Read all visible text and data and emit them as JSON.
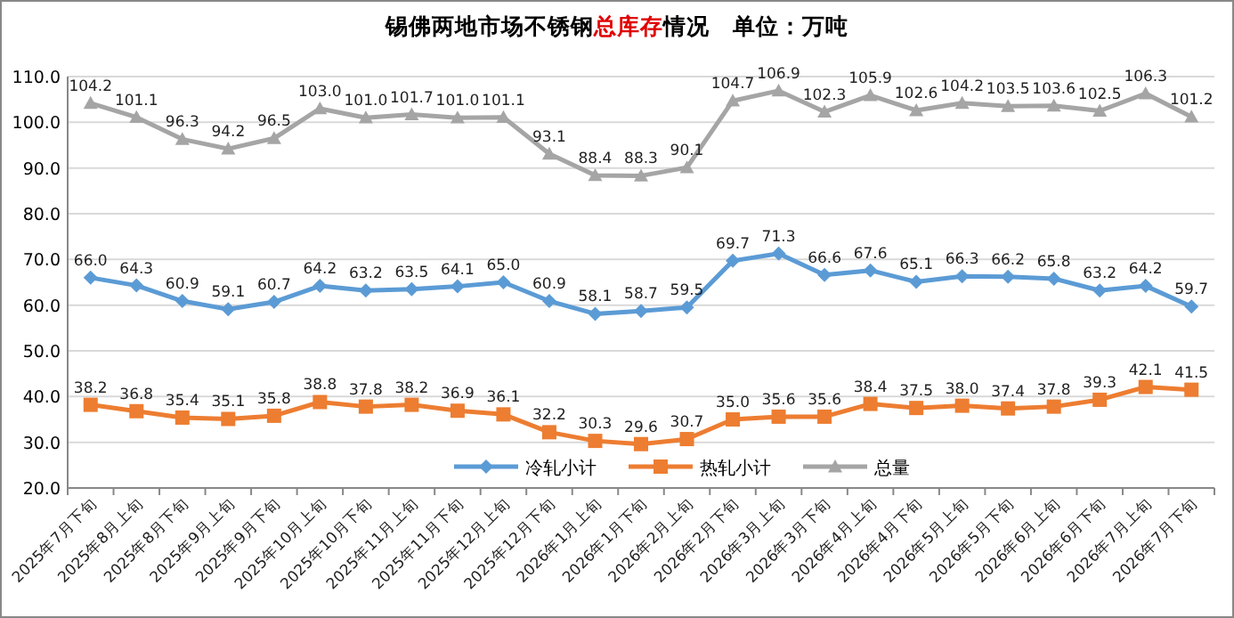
{
  "chart_data": {
    "type": "line",
    "title": "锡佛两地市场不锈钢**总库存**情况　单位：万吨",
    "categories": [
      "2025年7月下旬",
      "2025年8月上旬",
      "2025年8月下旬",
      "2025年9月上旬",
      "2025年9月下旬",
      "2025年10月上旬",
      "2025年10月下旬",
      "2025年11月上旬",
      "2025年11月下旬",
      "2025年12月上旬",
      "2025年12月下旬",
      "2026年1月上旬",
      "2026年1月下旬",
      "2026年2月上旬",
      "2026年2月下旬",
      "2026年3月上旬",
      "2026年3月下旬",
      "2026年4月上旬",
      "2026年4月下旬",
      "2026年5月上旬",
      "2026年5月下旬",
      "2026年6月上旬",
      "2026年6月下旬",
      "2026年7月上旬",
      "2026年7月下旬"
    ],
    "series": [
      {
        "name": "冷轧小计",
        "color": "#5b9bd5",
        "marker": "diamond",
        "value_labels": [
          "66.0",
          "64.3",
          "60.9",
          "59.1",
          "60.7",
          "64.2",
          "63.2",
          "63.5",
          "64.1",
          "65.0",
          "60.9",
          "58.1",
          "58.7",
          "59.5",
          "69.7",
          "71.3",
          "66.6",
          "67.6",
          "65.1",
          "66.3",
          "66.2",
          "65.8",
          "63.2",
          "64.2",
          "59.7"
        ],
        "values": [
          66.0,
          64.3,
          60.9,
          59.1,
          60.7,
          64.2,
          63.2,
          63.5,
          64.1,
          65.0,
          60.9,
          58.1,
          58.7,
          59.5,
          69.7,
          71.3,
          66.6,
          67.6,
          65.1,
          66.3,
          66.2,
          65.8,
          63.2,
          64.2,
          59.7
        ]
      },
      {
        "name": "热轧小计",
        "color": "#ed7d31",
        "marker": "square",
        "value_labels": [
          "38.2",
          "36.8",
          "35.4",
          "35.1",
          "35.8",
          "38.8",
          "37.8",
          "38.2",
          "36.9",
          "36.1",
          "32.2",
          "30.3",
          "29.6",
          "30.7",
          "35.0",
          "35.6",
          "35.6",
          "38.4",
          "37.5",
          "38.0",
          "37.4",
          "37.8",
          "39.3",
          "42.1",
          "41.5"
        ],
        "values": [
          38.2,
          36.8,
          35.4,
          35.1,
          35.8,
          38.8,
          37.8,
          38.2,
          36.9,
          36.1,
          32.2,
          30.3,
          29.6,
          30.7,
          35.0,
          35.6,
          35.6,
          38.4,
          37.5,
          38.0,
          37.4,
          37.8,
          39.3,
          42.1,
          41.5
        ]
      },
      {
        "name": "总量",
        "color": "#a5a5a5",
        "marker": "triangle",
        "value_labels": [
          "104.2",
          "101.1",
          "96.3",
          "94.2",
          "96.5",
          "103.0",
          "101.0",
          "101.7",
          "101.0",
          "101.1",
          "93.1",
          "88.4",
          "88.3",
          "90.1",
          "104.7",
          "106.9",
          "102.3",
          "105.9",
          "102.6",
          "104.2",
          "103.5",
          "103.6",
          "102.5",
          "106.3",
          "101.2"
        ],
        "values": [
          104.2,
          101.1,
          96.3,
          94.2,
          96.5,
          103.0,
          101.0,
          101.7,
          101.0,
          101.1,
          93.1,
          88.4,
          88.3,
          90.1,
          104.7,
          106.9,
          102.3,
          105.9,
          102.6,
          104.2,
          103.5,
          103.6,
          102.5,
          106.3,
          101.2
        ]
      }
    ],
    "ylim": [
      20,
      110
    ],
    "yticks": [
      {
        "value": 20,
        "label": "20.0"
      },
      {
        "value": 30,
        "label": "30.0"
      },
      {
        "value": 40,
        "label": "40.0"
      },
      {
        "value": 50,
        "label": "50.0"
      },
      {
        "value": 60,
        "label": "60.0"
      },
      {
        "value": 70,
        "label": "70.0"
      },
      {
        "value": 80,
        "label": "80.0"
      },
      {
        "value": 90,
        "label": "90.0"
      },
      {
        "value": 100,
        "label": "100.0"
      },
      {
        "value": 110,
        "label": "110.0"
      }
    ],
    "grid": "y",
    "legend": "bottom right"
  }
}
